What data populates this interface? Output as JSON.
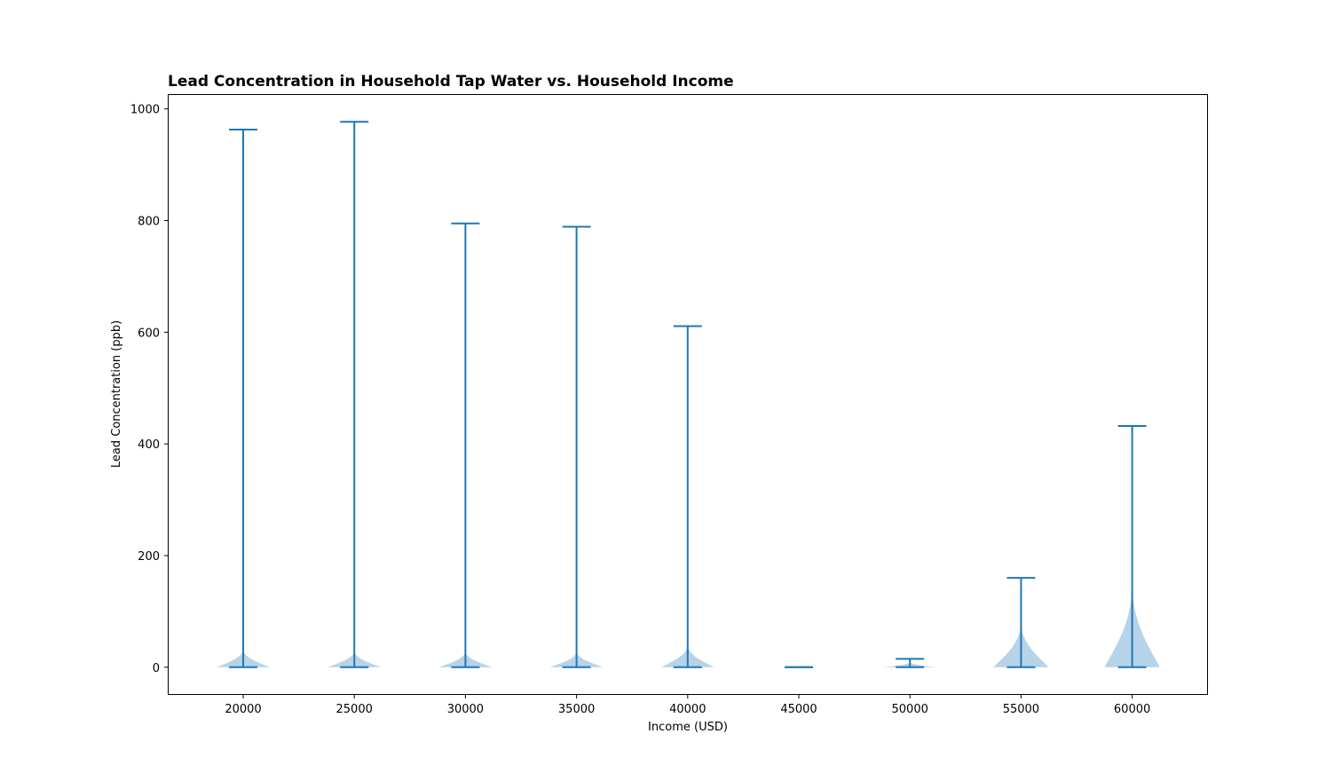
{
  "chart_data": {
    "type": "violin",
    "title": "Lead Concentration in Household Tap Water vs. Household Income",
    "xlabel": "Income (USD)",
    "ylabel": "Lead Concentration (ppb)",
    "ylim": [
      -48,
      1025
    ],
    "yticks": [
      0,
      200,
      400,
      600,
      800,
      1000
    ],
    "categories": [
      "20000",
      "25000",
      "30000",
      "35000",
      "40000",
      "45000",
      "50000",
      "55000",
      "60000"
    ],
    "series": [
      {
        "category": "20000",
        "min": 0,
        "max": 963,
        "density_peak": 28,
        "half_width": 0.24
      },
      {
        "category": "25000",
        "min": 0,
        "max": 977,
        "density_peak": 26,
        "half_width": 0.24
      },
      {
        "category": "30000",
        "min": 0,
        "max": 795,
        "density_peak": 25,
        "half_width": 0.24
      },
      {
        "category": "35000",
        "min": 0,
        "max": 789,
        "density_peak": 25,
        "half_width": 0.24
      },
      {
        "category": "40000",
        "min": 0,
        "max": 611,
        "density_peak": 35,
        "half_width": 0.24
      },
      {
        "category": "45000",
        "min": 0,
        "max": 0,
        "density_peak": 0,
        "half_width": 0
      },
      {
        "category": "50000",
        "min": 0,
        "max": 15,
        "density_peak": 8,
        "half_width": 0.24
      },
      {
        "category": "55000",
        "min": 0,
        "max": 160,
        "density_peak": 70,
        "half_width": 0.25
      },
      {
        "category": "60000",
        "min": 0,
        "max": 432,
        "density_peak": 130,
        "half_width": 0.25
      }
    ],
    "colors": {
      "line": "#1f77b4",
      "fill": "#b7d3e8",
      "frame": "#000000"
    },
    "grid": false,
    "legend": "none"
  }
}
